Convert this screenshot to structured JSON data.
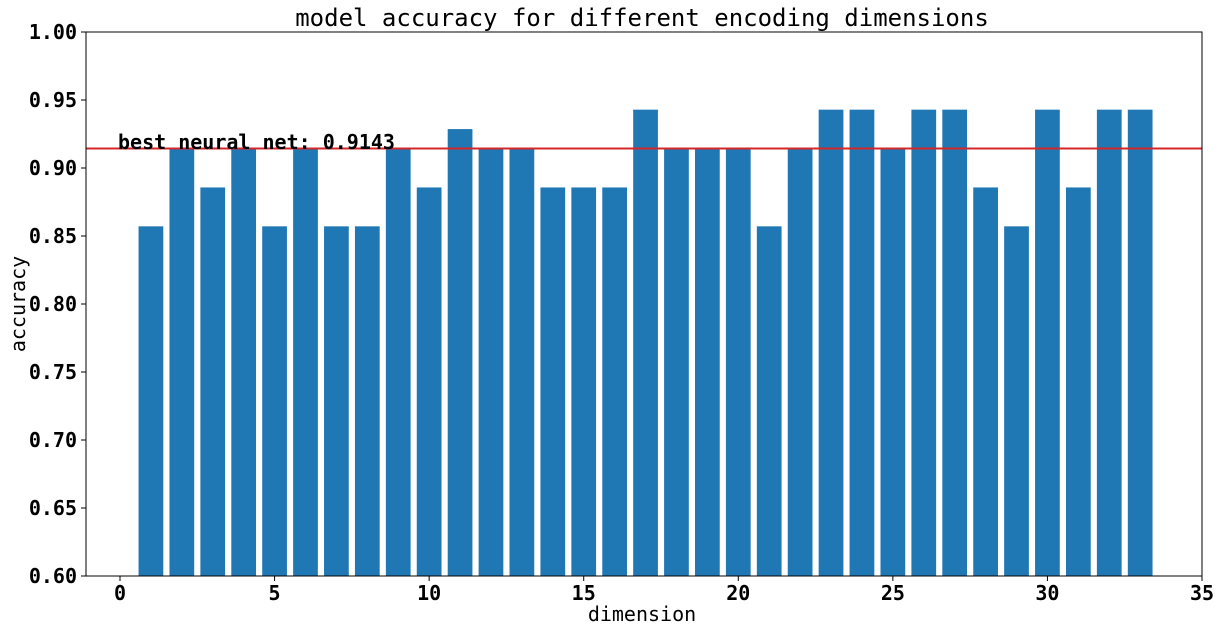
{
  "chart_data": {
    "type": "bar",
    "title": "model accuracy for different encoding dimensions",
    "xlabel": "dimension",
    "ylabel": "accuracy",
    "x": [
      1,
      2,
      3,
      4,
      5,
      6,
      7,
      8,
      9,
      10,
      11,
      12,
      13,
      14,
      15,
      16,
      17,
      18,
      19,
      20,
      21,
      22,
      23,
      24,
      25,
      26,
      27,
      28,
      29,
      30,
      31,
      32,
      33
    ],
    "values": [
      0.8571,
      0.9143,
      0.8857,
      0.9143,
      0.8571,
      0.9143,
      0.8571,
      0.8571,
      0.9143,
      0.8857,
      0.9286,
      0.9143,
      0.9143,
      0.8857,
      0.8857,
      0.8857,
      0.9429,
      0.9143,
      0.9143,
      0.9143,
      0.8571,
      0.9143,
      0.9429,
      0.9429,
      0.9143,
      0.9429,
      0.9429,
      0.8857,
      0.8571,
      0.9429,
      0.8857,
      0.9429,
      0.9429
    ],
    "xlim": [
      -1.1,
      35
    ],
    "ylim": [
      0.6,
      1.0
    ],
    "xticks": [
      0,
      5,
      10,
      15,
      20,
      25,
      30,
      35
    ],
    "yticks": [
      0.6,
      0.65,
      0.7,
      0.75,
      0.8,
      0.85,
      0.9,
      0.95,
      1.0
    ],
    "ytick_labels": [
      "0.60",
      "0.65",
      "0.70",
      "0.75",
      "0.80",
      "0.85",
      "0.90",
      "0.95",
      "1.00"
    ],
    "bar_color": "#1f77b4",
    "reference_line": {
      "value": 0.9143,
      "color": "#d62728",
      "label": "best neural net: 0.9143"
    },
    "grid": false
  }
}
